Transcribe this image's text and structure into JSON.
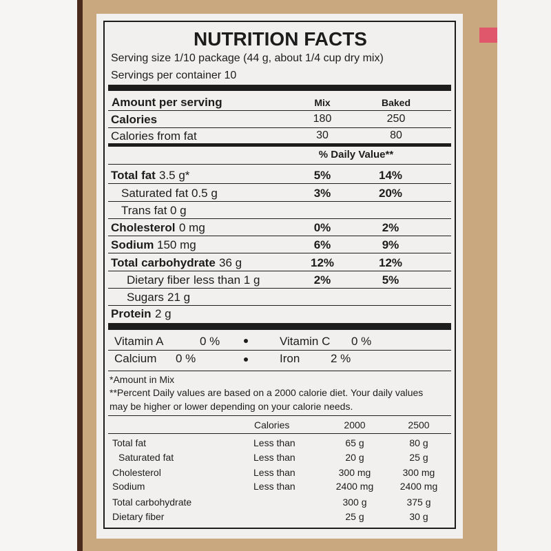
{
  "title": "NUTRITION FACTS",
  "serving_size": "Serving size 1/10 package (44 g, about 1/4 cup dry mix)",
  "servings": "Servings per container 10",
  "amount_header": {
    "label": "Amount per serving",
    "mix": "Mix",
    "baked": "Baked"
  },
  "calories": [
    {
      "name": "Calories",
      "mix": "180",
      "baked": "250",
      "bold": true
    },
    {
      "name": "Calories from fat",
      "mix": "30",
      "baked": "80",
      "bold": false
    }
  ],
  "daily_value_header": "% Daily Value**",
  "nutrients": [
    {
      "name": "Total fat",
      "amount": "3.5 g*",
      "mix": "5%",
      "baked": "14%",
      "bold": true,
      "indent": 0
    },
    {
      "name": "Saturated fat",
      "amount": "0.5 g",
      "mix": "3%",
      "baked": "20%",
      "bold": false,
      "indent": 1
    },
    {
      "name": "Trans fat",
      "amount": "0 g",
      "bold": false,
      "indent": 1
    },
    {
      "name": "Cholesterol",
      "amount": "0 mg",
      "mix": "0%",
      "baked": "2%",
      "bold": true,
      "indent": 0
    },
    {
      "name": "Sodium",
      "amount": "150 mg",
      "mix": "6%",
      "baked": "9%",
      "bold": true,
      "indent": 0
    },
    {
      "name": "Total carbohydrate",
      "amount": "36 g",
      "mix": "12%",
      "baked": "12%",
      "bold": true,
      "indent": 0
    },
    {
      "name": "Dietary fiber",
      "amount": "less than 1 g",
      "mix": "2%",
      "baked": "5%",
      "bold": false,
      "indent": 2
    },
    {
      "name": "Sugars",
      "amount": "21 g",
      "bold": false,
      "indent": 2
    },
    {
      "name": "Protein",
      "amount": "2 g",
      "bold": true,
      "indent": 0
    }
  ],
  "vitamins": [
    {
      "name": "Vitamin A",
      "value": "0 %"
    },
    {
      "name": "Vitamin C",
      "value": "0 %"
    },
    {
      "name": "Calcium",
      "value": "0 %"
    },
    {
      "name": "Iron",
      "value": "2 %"
    }
  ],
  "footnotes": [
    "*Amount in Mix",
    "**Percent Daily values are based on a 2000 calorie diet. Your daily values",
    "may be higher or lower depending on your calorie needs."
  ],
  "reference": {
    "header": {
      "label": "Calories",
      "columns": [
        "2000",
        "2500"
      ]
    },
    "rows": [
      {
        "name": "Total fat",
        "limit": "Less than",
        "values": [
          "65 g",
          "80 g"
        ]
      },
      {
        "name": "Saturated fat",
        "limit": "Less than",
        "values": [
          "20 g",
          "25 g"
        ],
        "indent": 1
      },
      {
        "name": "Cholesterol",
        "limit": "Less than",
        "values": [
          "300 mg",
          "300 mg"
        ]
      },
      {
        "name": "Sodium",
        "limit": "Less than",
        "values": [
          "2400 mg",
          "2400 mg"
        ]
      },
      {
        "name": "Total carbohydrate",
        "values": [
          "300 g",
          "375 g"
        ]
      },
      {
        "name": "Dietary fiber",
        "values": [
          "25 g",
          "30 g"
        ]
      }
    ]
  }
}
